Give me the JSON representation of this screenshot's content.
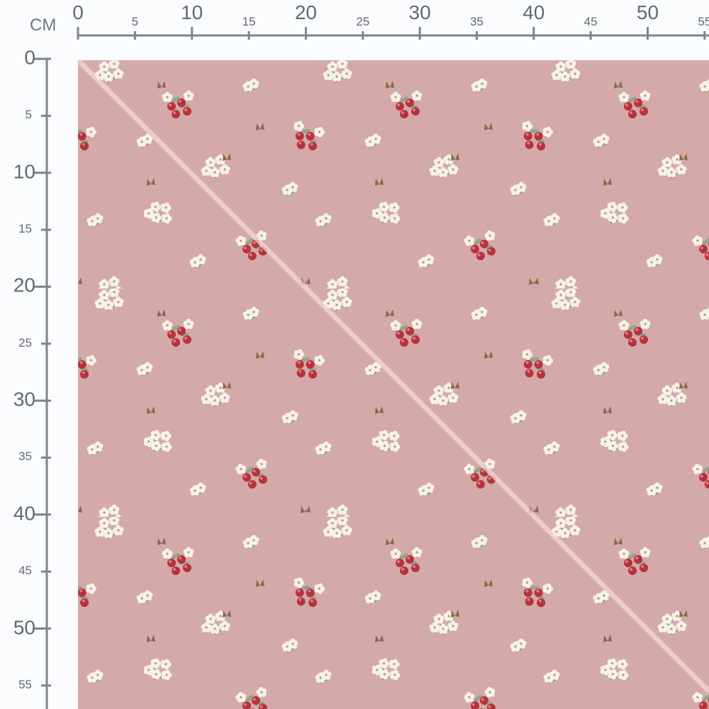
{
  "ruler": {
    "unit": "CM",
    "top_labels": [
      "0",
      "5",
      "10",
      "15",
      "20",
      "25",
      "30",
      "35",
      "40",
      "45",
      "50",
      "55"
    ],
    "left_labels": [
      "0",
      "5",
      "10",
      "15",
      "20",
      "25",
      "30",
      "35",
      "40",
      "45",
      "50",
      "55"
    ]
  },
  "fabric": {
    "background_color": "#d4a9a9",
    "cherry_color": "#b8323a",
    "flower_color": "#f6f1ea",
    "leaf_color": "#8fa68a",
    "butterfly_color": "#8a6a4a",
    "pattern_repeat_cm": 20,
    "fold_line": "diagonal"
  }
}
